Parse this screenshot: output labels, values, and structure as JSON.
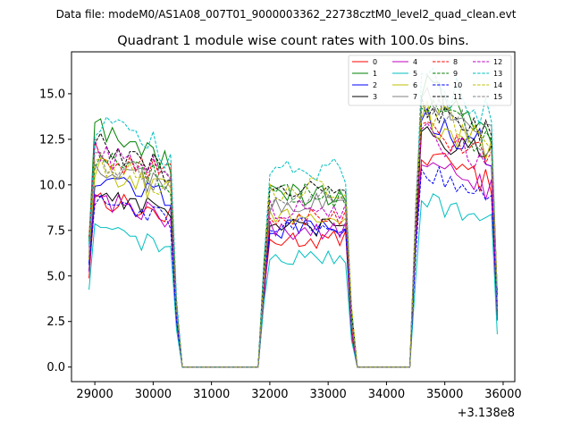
{
  "chart_data": {
    "type": "line",
    "suptitle": "Data file: modeM0/AS1A08_007T01_9000003362_22738cztM0_level2_quad_clean.evt",
    "title": "Quadrant 1 module wise count rates with 100.0s bins.",
    "xlabel": "",
    "ylabel": "",
    "x_offset_label": "+3.138e8",
    "xlim": [
      28600,
      36200
    ],
    "ylim": [
      -0.8,
      17.3
    ],
    "xticks": [
      29000,
      30000,
      31000,
      32000,
      33000,
      34000,
      35000,
      36000
    ],
    "xtick_labels": [
      "29000",
      "30000",
      "31000",
      "32000",
      "33000",
      "34000",
      "35000",
      "36000"
    ],
    "yticks": [
      0.0,
      2.5,
      5.0,
      7.5,
      10.0,
      12.5,
      15.0
    ],
    "ytick_labels": [
      "0.0",
      "2.5",
      "5.0",
      "7.5",
      "10.0",
      "12.5",
      "15.0"
    ],
    "segments": [
      {
        "start": 28900,
        "end": 30400
      },
      {
        "start": 31900,
        "end": 33400
      },
      {
        "start": 34500,
        "end": 35900
      }
    ],
    "legend_position": "upper-right",
    "series": [
      {
        "name": "0",
        "color": "#ff0000",
        "dash": "solid",
        "levels": [
          9.0,
          7.0,
          11.0
        ]
      },
      {
        "name": "1",
        "color": "#008000",
        "dash": "solid",
        "levels": [
          12.5,
          9.5,
          14.3
        ]
      },
      {
        "name": "2",
        "color": "#0000ff",
        "dash": "solid",
        "levels": [
          10.2,
          7.6,
          13.0
        ]
      },
      {
        "name": "3",
        "color": "#000000",
        "dash": "solid",
        "levels": [
          9.3,
          7.6,
          12.4
        ]
      },
      {
        "name": "4",
        "color": "#bf00bf",
        "dash": "solid",
        "levels": [
          9.0,
          7.5,
          10.6
        ]
      },
      {
        "name": "5",
        "color": "#00bfbf",
        "dash": "solid",
        "levels": [
          7.2,
          6.0,
          8.7
        ]
      },
      {
        "name": "6",
        "color": "#bfbf00",
        "dash": "solid",
        "levels": [
          10.5,
          8.3,
          13.0
        ]
      },
      {
        "name": "7",
        "color": "#808080",
        "dash": "solid",
        "levels": [
          10.8,
          9.0,
          14.0
        ]
      },
      {
        "name": "8",
        "color": "#ff0000",
        "dash": "dashed",
        "levels": [
          11.5,
          8.2,
          12.6
        ]
      },
      {
        "name": "9",
        "color": "#008000",
        "dash": "dashed",
        "levels": [
          11.2,
          9.4,
          13.4
        ]
      },
      {
        "name": "10",
        "color": "#0000ff",
        "dash": "dashed",
        "levels": [
          8.8,
          7.8,
          10.2
        ]
      },
      {
        "name": "11",
        "color": "#000000",
        "dash": "dashed",
        "levels": [
          11.7,
          9.6,
          13.9
        ]
      },
      {
        "name": "12",
        "color": "#bf00bf",
        "dash": "dashed",
        "levels": [
          11.5,
          8.6,
          12.2
        ]
      },
      {
        "name": "13",
        "color": "#00bfbf",
        "dash": "dashed",
        "levels": [
          12.8,
          10.8,
          15.0
        ]
      },
      {
        "name": "14",
        "color": "#bfbf00",
        "dash": "dashed",
        "levels": [
          11.0,
          9.8,
          13.4
        ]
      },
      {
        "name": "15",
        "color": "#808080",
        "dash": "dashed",
        "levels": [
          11.0,
          9.2,
          13.6
        ]
      }
    ]
  }
}
